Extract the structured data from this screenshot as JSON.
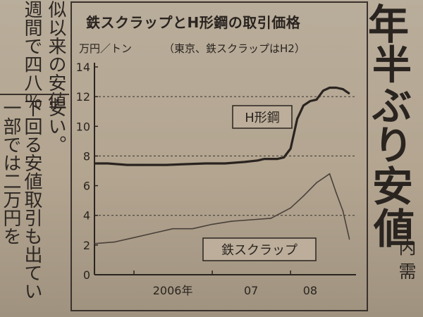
{
  "article": {
    "columns": [
      "似以来の安値",
      "週間で四八％",
      "安い。",
      "下回る安値取引も出てい",
      "一部では二万円を"
    ],
    "headline_chars": [
      "年",
      "半",
      "ぶ",
      "り",
      "安",
      "値"
    ],
    "side_chars": [
      "内",
      "需"
    ]
  },
  "chart_data": {
    "type": "line",
    "title": "鉄スクラップとH形鋼の取引価格",
    "units": "万円／トン",
    "note": "（東京、鉄スクラップはH2）",
    "x_tick_labels": [
      "2006年",
      "07",
      "08"
    ],
    "x_ticks": [
      "2006-01",
      "2007-01",
      "2008-01"
    ],
    "ylim": [
      0,
      14
    ],
    "y_ticks": [
      0,
      2,
      4,
      6,
      8,
      10,
      12,
      14
    ],
    "reference_lines": [
      4,
      8,
      12
    ],
    "series": [
      {
        "name": "H形鋼",
        "color": "#2a2420",
        "x": [
          "2005-07",
          "2005-09",
          "2005-12",
          "2006-03",
          "2006-06",
          "2006-09",
          "2006-12",
          "2007-03",
          "2007-06",
          "2007-08",
          "2007-09",
          "2007-10",
          "2007-11",
          "2007-12",
          "2008-01",
          "2008-02",
          "2008-03",
          "2008-04",
          "2008-05",
          "2008-06",
          "2008-07",
          "2008-08",
          "2008-09",
          "2008-10"
        ],
        "values": [
          7.5,
          7.5,
          7.4,
          7.4,
          7.4,
          7.45,
          7.5,
          7.5,
          7.6,
          7.7,
          7.8,
          7.8,
          7.8,
          7.9,
          8.5,
          10.5,
          11.4,
          11.7,
          11.8,
          12.4,
          12.6,
          12.6,
          12.5,
          12.2
        ]
      },
      {
        "name": "鉄スクラップ",
        "color": "#4a403a",
        "x": [
          "2005-07",
          "2005-10",
          "2006-01",
          "2006-04",
          "2006-07",
          "2006-10",
          "2007-01",
          "2007-04",
          "2007-07",
          "2007-10",
          "2008-01",
          "2008-03",
          "2008-05",
          "2008-07",
          "2008-08",
          "2008-09",
          "2008-10"
        ],
        "values": [
          2.1,
          2.2,
          2.5,
          2.8,
          3.1,
          3.1,
          3.4,
          3.6,
          3.7,
          3.8,
          4.5,
          5.3,
          6.2,
          6.8,
          5.5,
          4.3,
          2.4
        ]
      }
    ]
  }
}
